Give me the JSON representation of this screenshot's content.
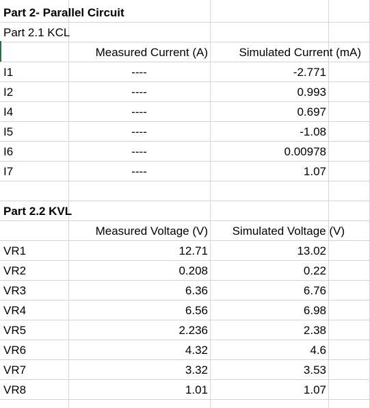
{
  "part2": {
    "title": "Part 2- Parallel Circuit",
    "kcl_title": "Part 2.1 KCL",
    "kcl_headers": {
      "measured": "Measured Current (A)",
      "simulated": "Simulated Current (mA)"
    },
    "kcl_rows": [
      {
        "label": "I1",
        "measured": "----",
        "simulated": "-2.771"
      },
      {
        "label": "I2",
        "measured": "----",
        "simulated": "0.993"
      },
      {
        "label": "I4",
        "measured": "----",
        "simulated": "0.697"
      },
      {
        "label": "I5",
        "measured": "----",
        "simulated": "-1.08"
      },
      {
        "label": "I6",
        "measured": "----",
        "simulated": "0.00978"
      },
      {
        "label": "I7",
        "measured": "----",
        "simulated": "1.07"
      }
    ],
    "kvl_title": "Part 2.2 KVL",
    "kvl_headers": {
      "measured": "Measured Voltage (V)",
      "simulated": "Simulated Voltage (V)"
    },
    "kvl_rows": [
      {
        "label": "VR1",
        "measured": "12.71",
        "simulated": "13.02"
      },
      {
        "label": "VR2",
        "measured": "0.208",
        "simulated": "0.22"
      },
      {
        "label": "VR3",
        "measured": "6.36",
        "simulated": "6.76"
      },
      {
        "label": "VR4",
        "measured": "6.56",
        "simulated": "6.98"
      },
      {
        "label": "VR5",
        "measured": "2.236",
        "simulated": "2.38"
      },
      {
        "label": "VR6",
        "measured": "4.32",
        "simulated": "4.6"
      },
      {
        "label": "VR7",
        "measured": "3.32",
        "simulated": "3.53"
      },
      {
        "label": "VR8",
        "measured": "1.01",
        "simulated": "1.07"
      }
    ]
  }
}
